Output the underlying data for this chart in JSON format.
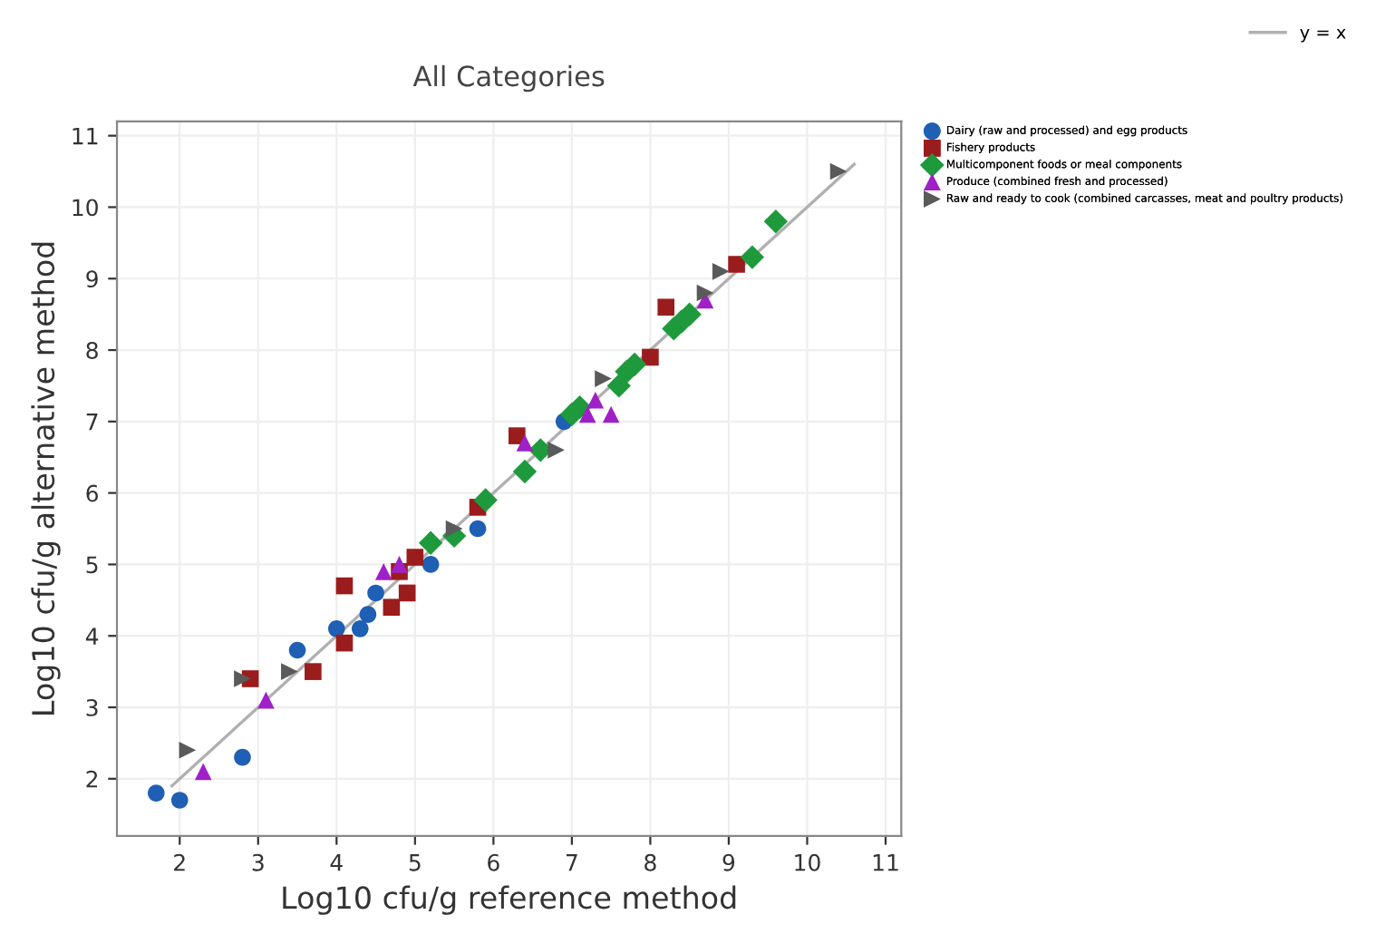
{
  "chart_data": {
    "type": "scatter",
    "title": "All Categories",
    "xlabel": "Log10 cfu/g reference method",
    "ylabel": "Log10 cfu/g alternative method",
    "xlim": [
      1.2,
      11.2
    ],
    "ylim": [
      1.2,
      11.2
    ],
    "xticks": [
      2,
      3,
      4,
      5,
      6,
      7,
      8,
      9,
      10,
      11
    ],
    "yticks": [
      2,
      3,
      4,
      5,
      6,
      7,
      8,
      9,
      10,
      11
    ],
    "grid": true,
    "legend": "right",
    "series": [
      {
        "name": "Dairy (raw and processed) and egg products",
        "color": "#1f5fb4",
        "marker": "circle",
        "x": [
          1.7,
          2.0,
          2.8,
          3.5,
          4.0,
          4.3,
          4.4,
          4.5,
          5.2,
          5.8,
          6.9
        ],
        "values": [
          1.8,
          1.7,
          2.3,
          3.8,
          4.1,
          4.1,
          4.3,
          4.6,
          5.0,
          5.5,
          7.0
        ]
      },
      {
        "name": "Fishery products",
        "color": "#9b1c1c",
        "marker": "square",
        "x": [
          2.9,
          3.7,
          4.1,
          4.1,
          4.7,
          4.9,
          5.0,
          4.8,
          5.8,
          6.3,
          8.0,
          8.2,
          9.1
        ],
        "values": [
          3.4,
          3.5,
          4.7,
          3.9,
          4.4,
          4.6,
          5.1,
          4.9,
          5.8,
          6.8,
          7.9,
          8.6,
          9.2
        ]
      },
      {
        "name": "Multicomponent foods or meal components",
        "color": "#1e9a3c",
        "marker": "diamond",
        "x": [
          5.2,
          5.5,
          5.9,
          6.4,
          6.6,
          7.1,
          7.0,
          7.6,
          7.7,
          7.8,
          8.3,
          8.5,
          8.4,
          9.3,
          9.6
        ],
        "values": [
          5.3,
          5.4,
          5.9,
          6.3,
          6.6,
          7.2,
          7.1,
          7.5,
          7.7,
          7.8,
          8.3,
          8.5,
          8.4,
          9.3,
          9.8
        ]
      },
      {
        "name": "Produce (combined fresh and processed)",
        "color": "#a020c8",
        "marker": "triangle",
        "x": [
          2.3,
          3.1,
          4.6,
          4.8,
          6.4,
          7.2,
          7.3,
          7.5,
          8.7
        ],
        "values": [
          2.1,
          3.1,
          4.9,
          5.0,
          6.7,
          7.1,
          7.3,
          7.1,
          8.7
        ]
      },
      {
        "name": "Raw and ready to cook (combined carcasses, meat and poultry products)",
        "color": "#5a5a5a",
        "marker": "triangle_right",
        "x": [
          2.1,
          2.8,
          3.4,
          5.5,
          6.8,
          7.4,
          8.7,
          8.9,
          10.4
        ],
        "values": [
          2.4,
          3.4,
          3.5,
          5.5,
          6.6,
          7.6,
          8.8,
          9.1,
          10.5
        ]
      },
      {
        "name": "y = x",
        "type": "line",
        "color": "#b0b0b0",
        "x": [
          1.9,
          10.6
        ],
        "values": [
          1.9,
          10.6
        ]
      }
    ]
  }
}
